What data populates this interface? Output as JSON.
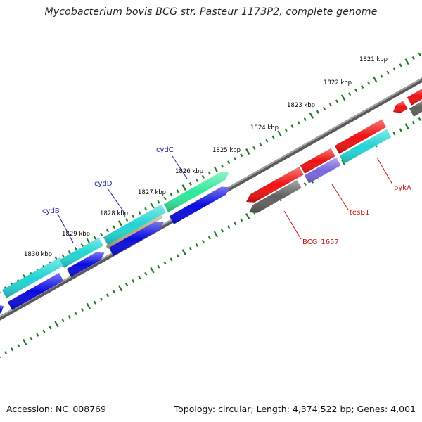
{
  "title": "Mycobacterium bovis BCG str. Pasteur 1173P2, complete genome",
  "footer": {
    "accession": "Accession: NC_008769",
    "stats": "Topology: circular; Length: 4,374,522 bp; Genes: 4,001"
  },
  "tick_labels": [
    "1821 kbp",
    "1822 kbp",
    "1823 kbp",
    "1824 kbp",
    "1825 kbp",
    "1826 kbp",
    "1827 kbp",
    "1828 kbp",
    "1829 kbp",
    "1830 kbp"
  ],
  "gene_labels": [
    {
      "text": "cydC",
      "color": "#1a1aa8"
    },
    {
      "text": "cydD",
      "color": "#1a1aa8"
    },
    {
      "text": "cydB",
      "color": "#1a1aa8"
    },
    {
      "text": "pykA",
      "color": "#cc1111"
    },
    {
      "text": "tesB1",
      "color": "#cc1111"
    },
    {
      "text": "BCG_1657",
      "color": "#cc1111"
    }
  ],
  "colors": {
    "backbone": "#7a7a7a",
    "ticks": "#1e7a1e",
    "forward_red": "#ee1111",
    "grey_feature": "#606060",
    "reverse_blue": "#0a0ae0",
    "cyan": "#22d4d4",
    "green": "#2ee89a",
    "purple": "#7766dd",
    "tan": "#b8a77a"
  }
}
